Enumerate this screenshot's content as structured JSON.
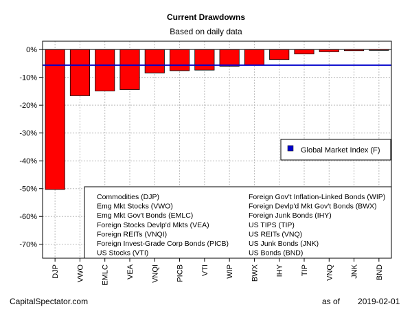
{
  "chart_data": {
    "type": "bar",
    "title": "Current Drawdowns",
    "subtitle": "Based on daily data",
    "categories": [
      "DJP",
      "VWO",
      "EMLC",
      "VEA",
      "VNQI",
      "PICB",
      "VTI",
      "WIP",
      "BWX",
      "IHY",
      "TIP",
      "VNQ",
      "JNK",
      "BND"
    ],
    "values": [
      -50.3,
      -16.6,
      -14.9,
      -14.4,
      -8.4,
      -7.6,
      -7.4,
      -6.0,
      -5.6,
      -3.6,
      -1.6,
      -0.8,
      -0.4,
      -0.3
    ],
    "bar_color": "#ff0000",
    "ylim": [
      -75,
      3
    ],
    "yticks": [
      0,
      -10,
      -20,
      -30,
      -40,
      -50,
      -60,
      -70
    ],
    "ytick_labels": [
      "0%",
      "-10%",
      "-20%",
      "-30%",
      "-40%",
      "-50%",
      "-60%",
      "-70%"
    ],
    "grid": true,
    "reference_line": {
      "label": "Global Market Index (F)",
      "value": -5.6,
      "color": "#0000cc"
    },
    "legend_placement": "right",
    "key_entries": [
      "Commodities (DJP)",
      "Emg Mkt Stocks (VWO)",
      "Emg Mkt Gov't Bonds (EMLC)",
      "Foreign Stocks Devlp'd Mkts (VEA)",
      "Foreign REITs (VNQI)",
      "Foreign Invest-Grade Corp Bonds (PICB)",
      "US Stocks (VTI)",
      "Foreign Gov't Inflation-Linked Bonds (WIP)",
      "Foreign Devlp'd Mkt Gov't Bonds (BWX)",
      "Foreign Junk Bonds (IHY)",
      "US TIPS (TIP)",
      "US REITs (VNQ)",
      "US Junk Bonds (JNK)",
      "US Bonds (BND)"
    ]
  },
  "footer": {
    "source": "CapitalSpectator.com",
    "asof_label": "as of",
    "date": "2019-02-01"
  }
}
